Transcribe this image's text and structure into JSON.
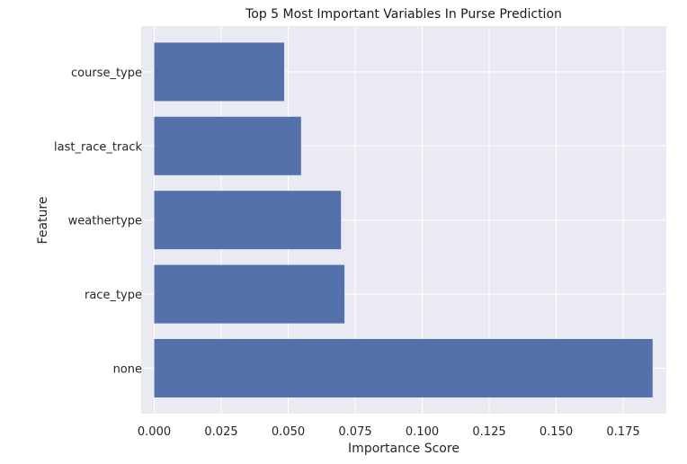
{
  "chart_data": {
    "type": "bar",
    "orientation": "horizontal",
    "title": "Top 5 Most Important Variables In Purse Prediction",
    "xlabel": "Importance Score",
    "ylabel": "Feature",
    "categories": [
      "none",
      "race_type",
      "weathertype",
      "last_race_track",
      "course_type"
    ],
    "values": [
      0.186,
      0.071,
      0.0697,
      0.0548,
      0.0485
    ],
    "xlim": [
      0.0,
      0.1855
    ],
    "xticks": [
      "0.000",
      "0.025",
      "0.050",
      "0.075",
      "0.100",
      "0.125",
      "0.150",
      "0.175"
    ],
    "grid": true,
    "colors": {
      "bar": "#5471ab",
      "plot_bg": "#eaeaf2",
      "grid": "#ffffff"
    }
  }
}
